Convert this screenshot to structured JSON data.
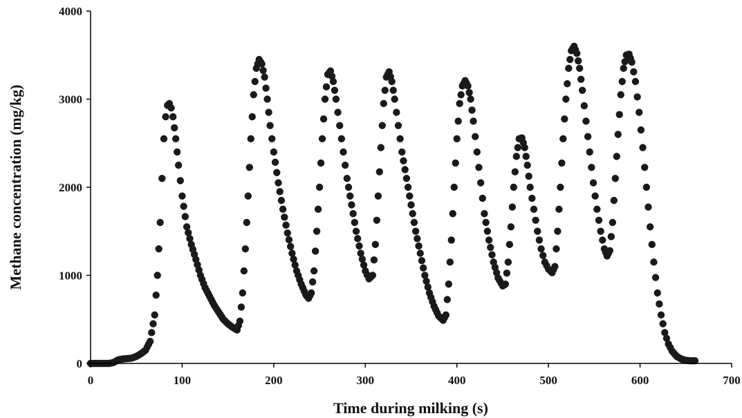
{
  "chart_data": {
    "type": "scatter",
    "title": "",
    "xlabel": "Time during milking (s)",
    "ylabel": "Methane concentration (mg/kg)",
    "xlim": [
      0,
      700
    ],
    "ylim": [
      0,
      4000
    ],
    "x_ticks": [
      0,
      100,
      200,
      300,
      400,
      500,
      600,
      700
    ],
    "y_ticks": [
      0,
      1000,
      2000,
      3000,
      4000
    ],
    "x_tick_labels": [
      "0",
      "100",
      "200",
      "300",
      "400",
      "500",
      "600",
      "700"
    ],
    "y_tick_labels": [
      "0",
      "1000",
      "2000",
      "3000",
      "4000"
    ],
    "grid": false,
    "legend": "none",
    "marker_color": "#1a1a1a",
    "series": [
      {
        "points": [
          [
            0,
            0
          ],
          [
            5,
            0
          ],
          [
            10,
            0
          ],
          [
            15,
            0
          ],
          [
            20,
            0
          ],
          [
            25,
            10
          ],
          [
            30,
            40
          ],
          [
            35,
            50
          ],
          [
            40,
            55
          ],
          [
            45,
            60
          ],
          [
            50,
            80
          ],
          [
            55,
            110
          ],
          [
            60,
            150
          ],
          [
            65,
            250
          ],
          [
            70,
            550
          ],
          [
            73,
            1000
          ],
          [
            76,
            1600
          ],
          [
            78,
            2100
          ],
          [
            80,
            2550
          ],
          [
            82,
            2800
          ],
          [
            84,
            2930
          ],
          [
            86,
            2950
          ],
          [
            88,
            2900
          ],
          [
            90,
            2800
          ],
          [
            93,
            2550
          ],
          [
            96,
            2250
          ],
          [
            100,
            1900
          ],
          [
            105,
            1550
          ],
          [
            110,
            1350
          ],
          [
            115,
            1180
          ],
          [
            120,
            1000
          ],
          [
            125,
            860
          ],
          [
            130,
            760
          ],
          [
            135,
            660
          ],
          [
            140,
            580
          ],
          [
            145,
            500
          ],
          [
            150,
            450
          ],
          [
            155,
            410
          ],
          [
            160,
            380
          ],
          [
            163,
            480
          ],
          [
            166,
            800
          ],
          [
            169,
            1300
          ],
          [
            172,
            1900
          ],
          [
            175,
            2550
          ],
          [
            178,
            3050
          ],
          [
            181,
            3350
          ],
          [
            184,
            3450
          ],
          [
            187,
            3400
          ],
          [
            190,
            3250
          ],
          [
            193,
            3000
          ],
          [
            196,
            2700
          ],
          [
            200,
            2400
          ],
          [
            205,
            2050
          ],
          [
            210,
            1750
          ],
          [
            215,
            1480
          ],
          [
            220,
            1250
          ],
          [
            225,
            1050
          ],
          [
            230,
            900
          ],
          [
            235,
            780
          ],
          [
            238,
            740
          ],
          [
            241,
            800
          ],
          [
            244,
            1050
          ],
          [
            247,
            1500
          ],
          [
            250,
            2000
          ],
          [
            253,
            2550
          ],
          [
            256,
            3000
          ],
          [
            259,
            3280
          ],
          [
            262,
            3320
          ],
          [
            265,
            3200
          ],
          [
            268,
            3000
          ],
          [
            272,
            2700
          ],
          [
            276,
            2400
          ],
          [
            280,
            2100
          ],
          [
            285,
            1800
          ],
          [
            290,
            1500
          ],
          [
            295,
            1250
          ],
          [
            300,
            1050
          ],
          [
            304,
            960
          ],
          [
            308,
            1000
          ],
          [
            311,
            1350
          ],
          [
            314,
            1900
          ],
          [
            317,
            2450
          ],
          [
            320,
            2950
          ],
          [
            323,
            3250
          ],
          [
            326,
            3310
          ],
          [
            329,
            3200
          ],
          [
            332,
            3000
          ],
          [
            336,
            2700
          ],
          [
            340,
            2400
          ],
          [
            345,
            2100
          ],
          [
            350,
            1800
          ],
          [
            355,
            1500
          ],
          [
            360,
            1250
          ],
          [
            365,
            1000
          ],
          [
            370,
            800
          ],
          [
            375,
            650
          ],
          [
            380,
            540
          ],
          [
            385,
            490
          ],
          [
            388,
            550
          ],
          [
            391,
            900
          ],
          [
            394,
            1400
          ],
          [
            397,
            2000
          ],
          [
            400,
            2550
          ],
          [
            403,
            2950
          ],
          [
            406,
            3150
          ],
          [
            409,
            3210
          ],
          [
            412,
            3150
          ],
          [
            415,
            3000
          ],
          [
            418,
            2750
          ],
          [
            422,
            2400
          ],
          [
            426,
            2050
          ],
          [
            430,
            1700
          ],
          [
            435,
            1400
          ],
          [
            440,
            1150
          ],
          [
            445,
            970
          ],
          [
            450,
            880
          ],
          [
            453,
            900
          ],
          [
            456,
            1150
          ],
          [
            459,
            1550
          ],
          [
            462,
            2000
          ],
          [
            465,
            2350
          ],
          [
            468,
            2550
          ],
          [
            471,
            2560
          ],
          [
            474,
            2450
          ],
          [
            477,
            2250
          ],
          [
            480,
            2000
          ],
          [
            484,
            1750
          ],
          [
            488,
            1500
          ],
          [
            492,
            1300
          ],
          [
            496,
            1150
          ],
          [
            500,
            1070
          ],
          [
            504,
            1030
          ],
          [
            507,
            1100
          ],
          [
            510,
            1500
          ],
          [
            513,
            2000
          ],
          [
            516,
            2550
          ],
          [
            519,
            3000
          ],
          [
            522,
            3350
          ],
          [
            525,
            3550
          ],
          [
            528,
            3600
          ],
          [
            531,
            3520
          ],
          [
            534,
            3350
          ],
          [
            537,
            3100
          ],
          [
            541,
            2750
          ],
          [
            545,
            2400
          ],
          [
            549,
            2050
          ],
          [
            553,
            1750
          ],
          [
            557,
            1500
          ],
          [
            561,
            1300
          ],
          [
            564,
            1220
          ],
          [
            567,
            1280
          ],
          [
            570,
            1600
          ],
          [
            573,
            2100
          ],
          [
            576,
            2600
          ],
          [
            579,
            3050
          ],
          [
            582,
            3350
          ],
          [
            585,
            3500
          ],
          [
            588,
            3510
          ],
          [
            591,
            3420
          ],
          [
            595,
            3200
          ],
          [
            599,
            2850
          ],
          [
            603,
            2450
          ],
          [
            607,
            2000
          ],
          [
            611,
            1550
          ],
          [
            615,
            1150
          ],
          [
            619,
            800
          ],
          [
            623,
            550
          ],
          [
            627,
            350
          ],
          [
            631,
            220
          ],
          [
            635,
            140
          ],
          [
            640,
            80
          ],
          [
            645,
            50
          ],
          [
            650,
            35
          ],
          [
            655,
            30
          ],
          [
            660,
            30
          ]
        ]
      }
    ]
  }
}
